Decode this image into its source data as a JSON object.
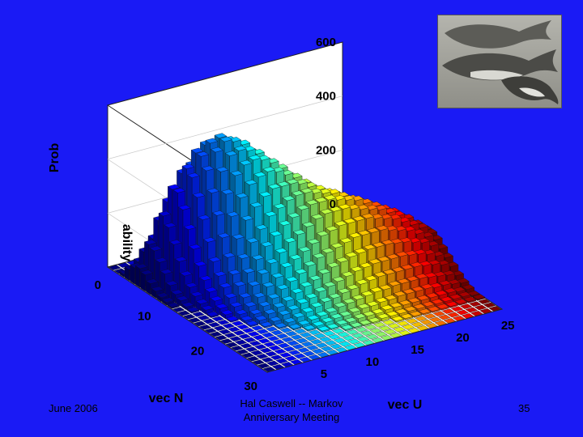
{
  "slide": {
    "footer_left": "June 2006",
    "footer_center_line1": "Hal Caswell -- Markov",
    "footer_center_line2": "Anniversary Meeting",
    "page_number": "35"
  },
  "image": {
    "subject": "whales"
  },
  "colors": {
    "background": "#1a1af5"
  },
  "chart_data": {
    "type": "bar3d",
    "title": "",
    "xlabel": "vec N",
    "ylabel": "vec U",
    "zlabel_fragments": [
      "Prob",
      "ability"
    ],
    "x_ticks": [
      "10",
      "20",
      "30"
    ],
    "y_ticks": [
      "5",
      "10",
      "15",
      "20",
      "25"
    ],
    "z_ticks": [
      "0",
      "200",
      "400",
      "600"
    ],
    "floor_tick": "0",
    "xlim": [
      0,
      30
    ],
    "ylim": [
      0,
      26
    ],
    "zlim": [
      0,
      600
    ],
    "colormap": "jet",
    "grid": [
      [
        0,
        0,
        0,
        0,
        0,
        0,
        0,
        0,
        0,
        0,
        0,
        0,
        0,
        0,
        0,
        0,
        0,
        0,
        0,
        0,
        0,
        0,
        0,
        0,
        0,
        0
      ],
      [
        0,
        0,
        0,
        0,
        0,
        0,
        0,
        0,
        0,
        0,
        0,
        0,
        0,
        0,
        0,
        0,
        0,
        0,
        0,
        0,
        0,
        0,
        0,
        0,
        0,
        0
      ],
      [
        10,
        20,
        25,
        20,
        15,
        10,
        5,
        0,
        0,
        0,
        0,
        0,
        0,
        0,
        0,
        0,
        0,
        0,
        0,
        0,
        0,
        0,
        0,
        0,
        0,
        0
      ],
      [
        40,
        60,
        80,
        90,
        80,
        60,
        40,
        25,
        10,
        5,
        0,
        0,
        0,
        0,
        0,
        0,
        0,
        0,
        0,
        0,
        0,
        0,
        0,
        0,
        0,
        0
      ],
      [
        60,
        110,
        150,
        180,
        180,
        160,
        130,
        100,
        70,
        40,
        20,
        10,
        0,
        0,
        0,
        0,
        0,
        0,
        0,
        0,
        0,
        0,
        0,
        0,
        0,
        0
      ],
      [
        70,
        150,
        230,
        290,
        310,
        300,
        270,
        230,
        180,
        140,
        100,
        70,
        40,
        20,
        10,
        0,
        0,
        0,
        0,
        0,
        0,
        0,
        0,
        0,
        0,
        0
      ],
      [
        60,
        140,
        260,
        350,
        400,
        420,
        410,
        380,
        330,
        280,
        220,
        170,
        120,
        80,
        50,
        30,
        15,
        5,
        0,
        0,
        0,
        0,
        0,
        0,
        0,
        0
      ],
      [
        40,
        110,
        230,
        350,
        430,
        480,
        500,
        480,
        450,
        400,
        340,
        280,
        220,
        160,
        120,
        80,
        50,
        30,
        15,
        5,
        0,
        0,
        0,
        0,
        0,
        0
      ],
      [
        25,
        80,
        180,
        300,
        410,
        480,
        520,
        530,
        510,
        470,
        420,
        360,
        300,
        240,
        180,
        130,
        90,
        60,
        40,
        20,
        10,
        5,
        0,
        0,
        0,
        0
      ],
      [
        15,
        50,
        130,
        240,
        350,
        440,
        500,
        530,
        520,
        500,
        460,
        410,
        360,
        300,
        240,
        190,
        140,
        100,
        70,
        45,
        25,
        15,
        5,
        0,
        0,
        0
      ],
      [
        10,
        30,
        90,
        180,
        280,
        370,
        440,
        490,
        500,
        490,
        470,
        430,
        390,
        340,
        290,
        240,
        200,
        150,
        110,
        80,
        55,
        35,
        20,
        10,
        5,
        0
      ],
      [
        5,
        20,
        60,
        130,
        210,
        300,
        370,
        430,
        460,
        470,
        460,
        440,
        410,
        370,
        330,
        290,
        250,
        210,
        170,
        130,
        100,
        70,
        50,
        30,
        15,
        5
      ],
      [
        0,
        10,
        40,
        90,
        150,
        230,
        300,
        360,
        400,
        420,
        430,
        420,
        400,
        380,
        350,
        320,
        290,
        260,
        220,
        190,
        160,
        130,
        100,
        70,
        45,
        20
      ],
      [
        0,
        5,
        25,
        60,
        110,
        170,
        230,
        290,
        330,
        360,
        380,
        380,
        380,
        370,
        350,
        330,
        310,
        290,
        260,
        230,
        200,
        170,
        140,
        110,
        80,
        50
      ],
      [
        0,
        0,
        15,
        40,
        80,
        120,
        170,
        220,
        260,
        300,
        320,
        340,
        350,
        350,
        340,
        330,
        320,
        300,
        280,
        260,
        240,
        210,
        180,
        150,
        120,
        90
      ],
      [
        0,
        0,
        5,
        25,
        55,
        90,
        130,
        170,
        210,
        240,
        270,
        290,
        310,
        320,
        320,
        320,
        310,
        300,
        290,
        270,
        250,
        230,
        210,
        180,
        150,
        110
      ],
      [
        0,
        0,
        0,
        15,
        35,
        60,
        95,
        130,
        160,
        190,
        220,
        240,
        260,
        280,
        290,
        290,
        290,
        280,
        270,
        260,
        250,
        230,
        210,
        190,
        160,
        130
      ],
      [
        0,
        0,
        0,
        5,
        20,
        40,
        65,
        95,
        120,
        150,
        170,
        190,
        210,
        230,
        240,
        250,
        250,
        250,
        250,
        240,
        230,
        220,
        200,
        180,
        160,
        130
      ],
      [
        0,
        0,
        0,
        0,
        10,
        25,
        45,
        65,
        90,
        110,
        130,
        150,
        170,
        180,
        190,
        200,
        210,
        210,
        210,
        210,
        200,
        190,
        180,
        160,
        140,
        120
      ],
      [
        0,
        0,
        0,
        0,
        5,
        15,
        30,
        45,
        60,
        80,
        95,
        110,
        125,
        140,
        150,
        160,
        165,
        170,
        170,
        170,
        165,
        160,
        150,
        140,
        120,
        100
      ],
      [
        0,
        0,
        0,
        0,
        0,
        5,
        15,
        30,
        40,
        55,
        65,
        80,
        90,
        100,
        110,
        120,
        125,
        130,
        130,
        130,
        130,
        125,
        120,
        110,
        95,
        80
      ],
      [
        0,
        0,
        0,
        0,
        0,
        0,
        5,
        15,
        25,
        35,
        45,
        55,
        60,
        70,
        75,
        85,
        90,
        95,
        95,
        95,
        95,
        95,
        90,
        85,
        75,
        60
      ],
      [
        0,
        0,
        0,
        0,
        0,
        0,
        0,
        5,
        10,
        20,
        25,
        30,
        40,
        45,
        50,
        55,
        60,
        60,
        65,
        65,
        65,
        65,
        60,
        55,
        50,
        40
      ],
      [
        0,
        0,
        0,
        0,
        0,
        0,
        0,
        0,
        5,
        10,
        15,
        20,
        20,
        25,
        30,
        30,
        35,
        35,
        40,
        40,
        40,
        40,
        35,
        35,
        30,
        25
      ],
      [
        0,
        0,
        0,
        0,
        0,
        0,
        0,
        0,
        0,
        5,
        5,
        10,
        10,
        15,
        15,
        15,
        20,
        20,
        20,
        20,
        20,
        20,
        20,
        20,
        15,
        15
      ],
      [
        0,
        0,
        0,
        0,
        0,
        0,
        0,
        0,
        0,
        0,
        0,
        5,
        5,
        5,
        5,
        10,
        10,
        10,
        10,
        10,
        10,
        10,
        10,
        10,
        10,
        5
      ],
      [
        0,
        0,
        0,
        0,
        0,
        0,
        0,
        0,
        0,
        0,
        0,
        0,
        0,
        0,
        0,
        0,
        5,
        5,
        5,
        5,
        5,
        5,
        5,
        5,
        5,
        5
      ],
      [
        0,
        0,
        0,
        0,
        0,
        0,
        0,
        0,
        0,
        0,
        0,
        0,
        0,
        0,
        0,
        0,
        0,
        0,
        0,
        0,
        0,
        0,
        0,
        0,
        0,
        0
      ],
      [
        0,
        0,
        0,
        0,
        0,
        0,
        0,
        0,
        0,
        0,
        0,
        0,
        0,
        0,
        0,
        0,
        0,
        0,
        0,
        0,
        0,
        0,
        0,
        0,
        0,
        0
      ],
      [
        0,
        0,
        0,
        0,
        0,
        0,
        0,
        0,
        0,
        0,
        0,
        0,
        0,
        0,
        0,
        0,
        0,
        0,
        0,
        0,
        0,
        0,
        0,
        0,
        0,
        0
      ]
    ]
  }
}
